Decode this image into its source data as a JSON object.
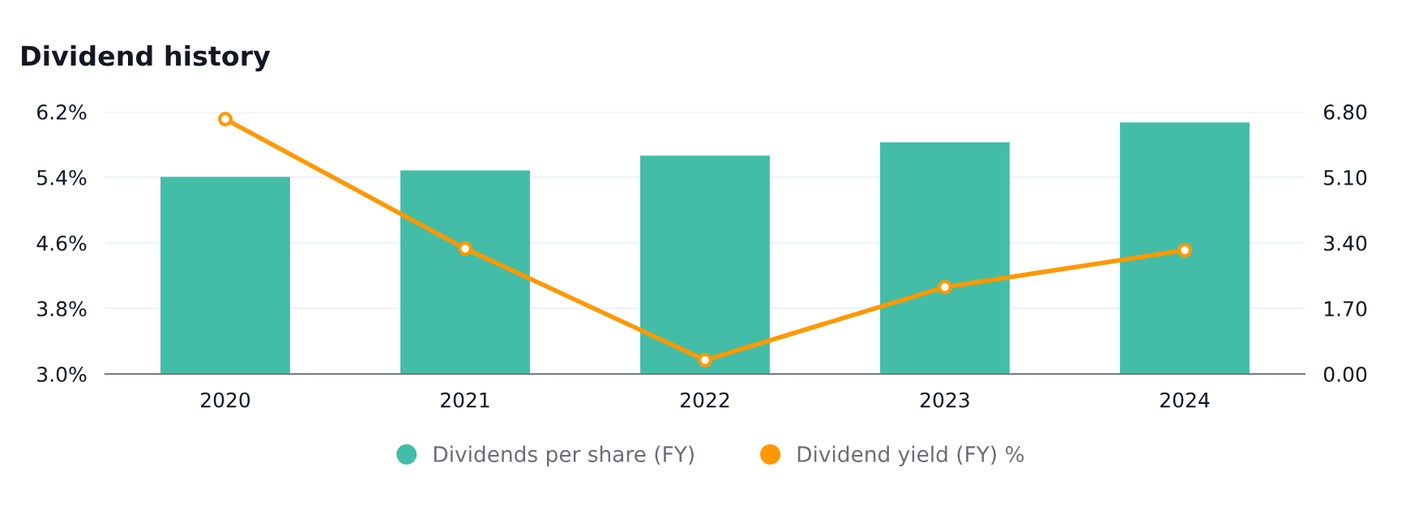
{
  "chart_data": {
    "type": "bar",
    "title": "Dividend history",
    "categories": [
      "2020",
      "2021",
      "2022",
      "2023",
      "2024"
    ],
    "series": [
      {
        "name": "Dividends per share (FY)",
        "axis": "y2",
        "color": "#43bda8",
        "values": [
          5.11,
          5.28,
          5.66,
          6.01,
          6.52
        ]
      },
      {
        "name": "Dividend yield (FY) %",
        "type": "line",
        "color": "#ff9800",
        "marker": "circle",
        "line_style": "solid",
        "values": [
          6.11,
          4.53,
          3.17,
          4.06,
          4.51
        ]
      }
    ],
    "ylim": [
      3.0,
      6.2
    ],
    "yticks": [
      {
        "value": 3.0,
        "label": "3.0%"
      },
      {
        "value": 3.8,
        "label": "3.8%"
      },
      {
        "value": 4.6,
        "label": "4.6%"
      },
      {
        "value": 5.4,
        "label": "5.4%"
      },
      {
        "value": 6.2,
        "label": "6.2%"
      }
    ],
    "y2lim": [
      0,
      6.8
    ],
    "y2ticks": [
      {
        "value": 0,
        "label": "0.00"
      },
      {
        "value": 1.7,
        "label": "1.70"
      },
      {
        "value": 3.4,
        "label": "3.40"
      },
      {
        "value": 5.1,
        "label": "5.10"
      },
      {
        "value": 6.8,
        "label": "6.80"
      }
    ],
    "grid": "y",
    "legend": "bottom"
  }
}
